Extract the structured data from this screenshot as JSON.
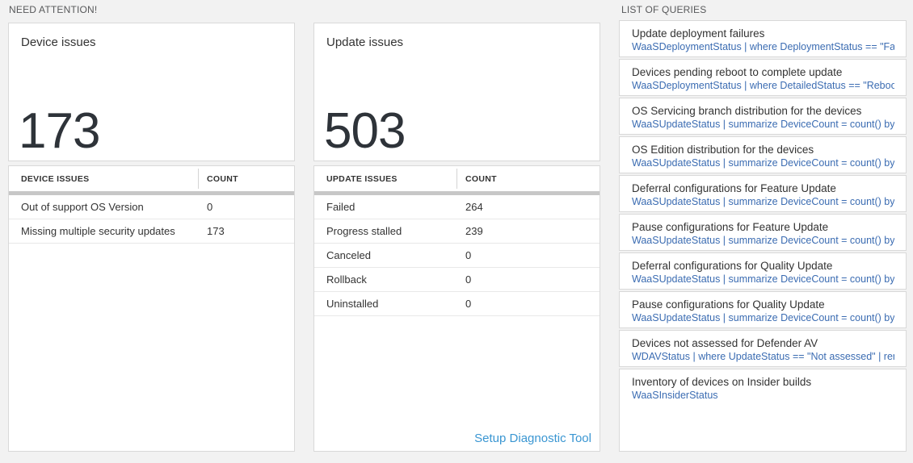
{
  "colors": {
    "page_background": "#f2f2f2",
    "panel_background": "#ffffff",
    "panel_border": "#d9d9d9",
    "section_label": "#58595b",
    "text_primary": "#333333",
    "big_number": "#2e3339",
    "table_header_bar": "#c7c7c7",
    "row_divider": "#e8e8e8",
    "query_link_blue": "#3b6cb2",
    "setup_link_blue": "#3a96d2"
  },
  "need_attention": {
    "section_title": "NEED ATTENTION!",
    "device_card": {
      "title": "Device issues",
      "value": "173",
      "table": {
        "headers": [
          "DEVICE ISSUES",
          "COUNT"
        ],
        "rows": [
          {
            "label": "Out of support OS Version",
            "count": "0"
          },
          {
            "label": "Missing multiple security updates",
            "count": "173"
          }
        ]
      }
    },
    "update_card": {
      "title": "Update issues",
      "value": "503",
      "table": {
        "headers": [
          "UPDATE ISSUES",
          "COUNT"
        ],
        "rows": [
          {
            "label": "Failed",
            "count": "264"
          },
          {
            "label": "Progress stalled",
            "count": "239"
          },
          {
            "label": "Canceled",
            "count": "0"
          },
          {
            "label": "Rollback",
            "count": "0"
          },
          {
            "label": "Uninstalled",
            "count": "0"
          }
        ]
      },
      "footer_link": "Setup Diagnostic Tool"
    }
  },
  "queries": {
    "section_title": "LIST OF QUERIES",
    "items": [
      {
        "title": "Update deployment failures",
        "query": "WaaSDeploymentStatus | where DeploymentStatus == \"Failed\" |..."
      },
      {
        "title": "Devices pending reboot to complete update",
        "query": "WaaSDeploymentStatus | where DetailedStatus == \"Reboot pend..."
      },
      {
        "title": "OS Servicing branch distribution for the devices",
        "query": "WaaSUpdateStatus | summarize DeviceCount = count() by OSSer..."
      },
      {
        "title": "OS Edition distribution for the devices",
        "query": "WaaSUpdateStatus | summarize DeviceCount = count() by OSEdit..."
      },
      {
        "title": "Deferral configurations for Feature Update",
        "query": "WaaSUpdateStatus | summarize DeviceCount = count() by Featur..."
      },
      {
        "title": "Pause configurations for Feature Update",
        "query": "WaaSUpdateStatus | summarize DeviceCount = count() by Featur..."
      },
      {
        "title": "Deferral configurations for Quality Update",
        "query": "WaaSUpdateStatus | summarize DeviceCount = count() by Qualit..."
      },
      {
        "title": "Pause configurations for Quality Update",
        "query": "WaaSUpdateStatus | summarize DeviceCount = count() by Qualit..."
      },
      {
        "title": "Devices not assessed for Defender AV",
        "query": "WDAVStatus | where UpdateStatus == \"Not assessed\" | render ta..."
      },
      {
        "title": "Inventory of devices on Insider builds",
        "query": "WaaSInsiderStatus"
      }
    ]
  }
}
